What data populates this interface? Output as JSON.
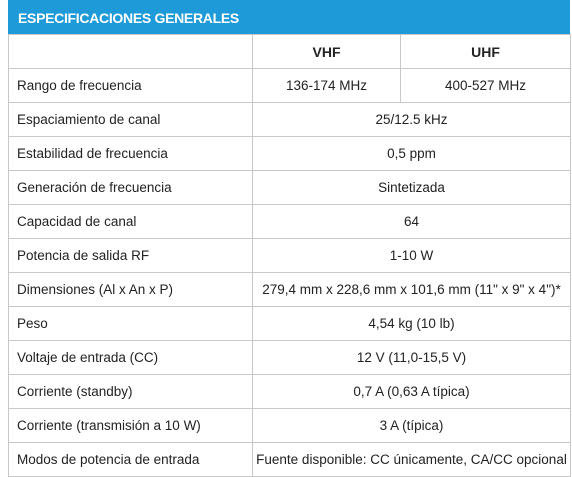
{
  "header": {
    "title": "ESPECIFICACIONES GENERALES"
  },
  "table": {
    "columns": [
      "VHF",
      "UHF"
    ],
    "rows": [
      [
        "Rango de frecuencia",
        "136-174 MHz",
        "400-527 MHz"
      ],
      [
        "Espaciamiento de canal",
        "25/12.5 kHz"
      ],
      [
        "Estabilidad de frecuencia",
        "0,5 ppm"
      ],
      [
        "Generación de frecuencia",
        "Sintetizada"
      ],
      [
        "Capacidad de canal",
        "64"
      ],
      [
        "Potencia de salida RF",
        "1-10 W"
      ],
      [
        "Dimensiones (Al x An x P)",
        "279,4 mm x 228,6 mm x 101,6 mm (11\" x 9\" x 4\")*"
      ],
      [
        "Peso",
        "4,54 kg (10 lb)"
      ],
      [
        "Voltaje de entrada (CC)",
        "12 V (11,0-15,5 V)"
      ],
      [
        "Corriente (standby)",
        "0,7 A (0,63 A típica)"
      ],
      [
        "Corriente (transmisión a 10 W)",
        "3 A (típica)"
      ],
      [
        "Modos de potencia de entrada",
        "Fuente disponible: CC únicamente, CA/CC opcional"
      ]
    ]
  }
}
